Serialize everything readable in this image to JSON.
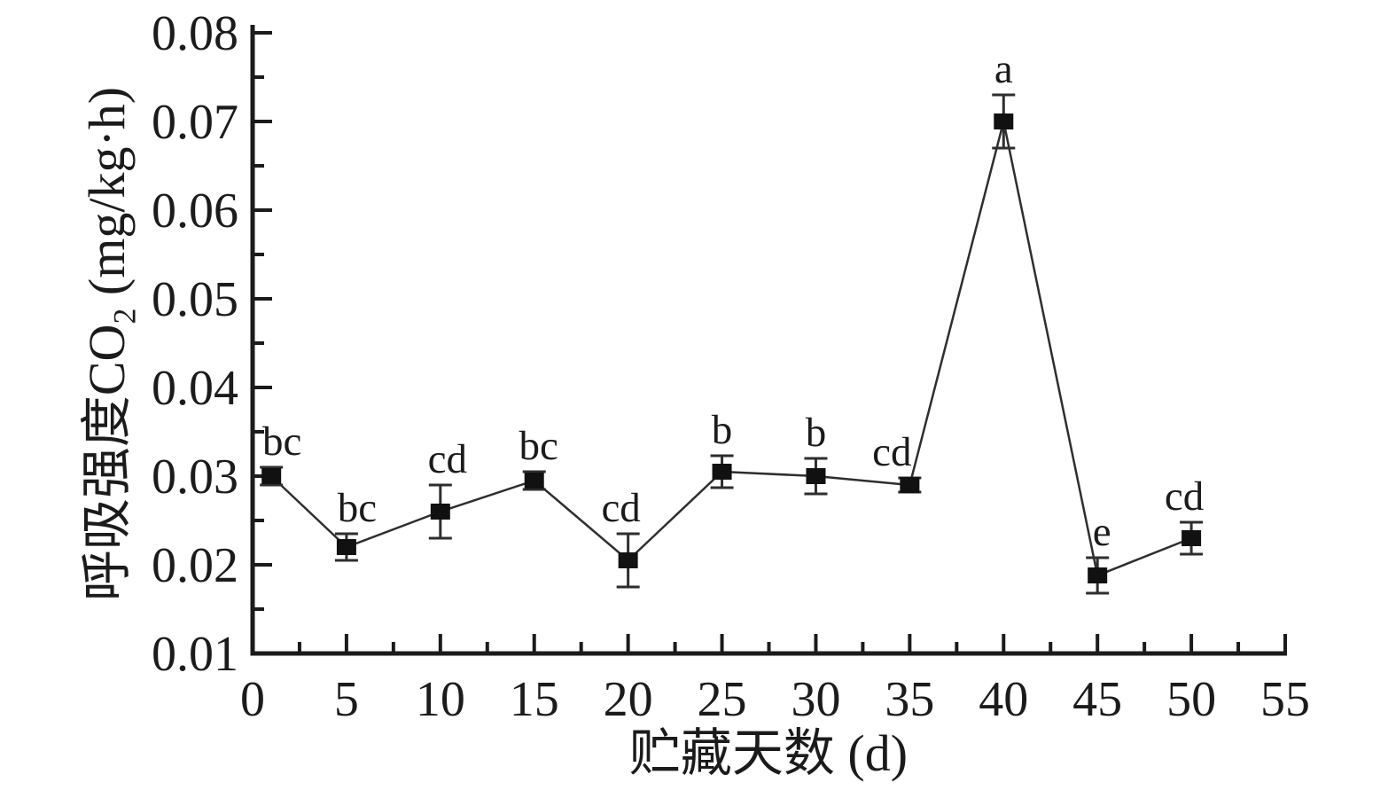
{
  "figure": {
    "background": "#ffffff",
    "axis_color": "#1b1b1b",
    "line_color": "#2e2e2e",
    "marker_color": "#111111",
    "text_color": "#1b1b1b"
  },
  "chart_data": {
    "type": "line",
    "title": "",
    "xlabel": "贮藏天数 (d)",
    "ylabel": "呼吸强度CO₂ (mg/kg·h)",
    "ylabel_parts": {
      "prefix": "呼吸强度CO",
      "sub": "2",
      "suffix": " (mg/kg·h)"
    },
    "xlim": [
      0,
      55
    ],
    "ylim": [
      0.01,
      0.08
    ],
    "x_major_step": 5,
    "x_minor_step": 2.5,
    "y_major_step": 0.01,
    "y_minor_step": 0.005,
    "grid": false,
    "legend": null,
    "x_tick_labels": [
      "0",
      "5",
      "10",
      "15",
      "20",
      "25",
      "30",
      "35",
      "40",
      "45",
      "50",
      "55"
    ],
    "y_tick_labels": [
      "0.01",
      "0.02",
      "0.03",
      "0.04",
      "0.05",
      "0.06",
      "0.07",
      "0.08"
    ],
    "series": [
      {
        "name": "呼吸强度CO2",
        "marker": "filled-square",
        "x": [
          1,
          5,
          10,
          15,
          20,
          25,
          30,
          35,
          40,
          45,
          50
        ],
        "y": [
          0.03,
          0.022,
          0.026,
          0.0295,
          0.0205,
          0.0305,
          0.03,
          0.029,
          0.07,
          0.0188,
          0.023
        ],
        "yerr": [
          0.001,
          0.0015,
          0.003,
          0.001,
          0.003,
          0.0018,
          0.002,
          0.0008,
          0.003,
          0.002,
          0.0018
        ],
        "point_labels": [
          "bc",
          "bc",
          "cd",
          "bc",
          "cd",
          "b",
          "b",
          "cd",
          "a",
          "e",
          "cd"
        ],
        "label_dx": [
          12,
          12,
          8,
          5,
          -8,
          0,
          0,
          -20,
          0,
          5,
          -8
        ]
      }
    ]
  }
}
